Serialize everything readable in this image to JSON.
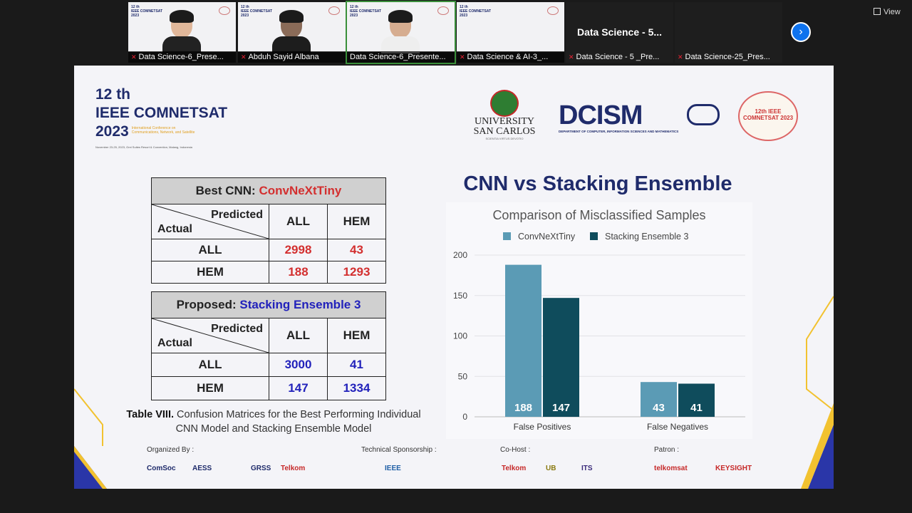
{
  "meeting": {
    "participants": [
      {
        "name": "Data Science-6_Prese...",
        "active": false
      },
      {
        "name": "Abduh Sayid Albana",
        "active": false
      },
      {
        "name": "Data Science-6_Presente...",
        "active": true
      },
      {
        "name": "Data Science & AI-3_...",
        "active": false
      },
      {
        "name": "Data Science - 5 _Pre...",
        "video": false,
        "display": "Data Science - 5..."
      },
      {
        "name": "Data Science-25_Pres...",
        "video": false,
        "display": ""
      }
    ],
    "view_label": "View"
  },
  "slide": {
    "conference": {
      "line1": "12 th",
      "line2": "IEEE COMNETSAT",
      "line3": "2023",
      "sub": "International Conference on Communications, Network, and Satellite",
      "date": "November 23-25, 2023, Grei Suites Resort & Convention, Malang, Indonesia"
    },
    "usc": {
      "line1": "UNIVERSITY",
      "line2": "SAN CARLOS",
      "of": "of",
      "motto": "SCIENTIA VIRTUS DEVOTIO"
    },
    "dcism": {
      "title": "DCISM",
      "subtitle": "DEPARTMENT OF COMPUTER, INFORMATION SCIENCES AND MATHEMATICS"
    },
    "seal": {
      "text": "12th IEEE COMNETSAT 2023"
    },
    "table1": {
      "header_prefix": "Best CNN:",
      "model": "ConvNeXtTiny",
      "predicted": "Predicted",
      "actual": "Actual",
      "cols": [
        "ALL",
        "HEM"
      ],
      "rows": [
        {
          "label": "ALL",
          "values": [
            "2998",
            "43"
          ]
        },
        {
          "label": "HEM",
          "values": [
            "188",
            "1293"
          ]
        }
      ]
    },
    "table2": {
      "header_prefix": "Proposed:",
      "model": "Stacking Ensemble 3",
      "predicted": "Predicted",
      "actual": "Actual",
      "cols": [
        "ALL",
        "HEM"
      ],
      "rows": [
        {
          "label": "ALL",
          "values": [
            "3000",
            "41"
          ]
        },
        {
          "label": "HEM",
          "values": [
            "147",
            "1334"
          ]
        }
      ]
    },
    "caption_bold": "Table VIII.",
    "caption_rest": "Confusion Matrices for the Best Performing Individual CNN Model and Stacking Ensemble Model",
    "chart_title": "CNN vs Stacking Ensemble",
    "sponsors": {
      "organized_by": "Organized By :",
      "technical": "Technical Sponsorship :",
      "cohost": "Co-Host :",
      "patron": "Patron :",
      "logos": [
        "ComSoc",
        "AESS",
        "GRSS",
        "Telkom",
        "IEEE",
        "Telkom",
        "UB",
        "ITS",
        "telkomsat",
        "KEYSIGHT"
      ]
    },
    "colors": {
      "navy": "#1f2b6b",
      "series1": "#5b9bb5",
      "series2": "#0f4c5c",
      "red": "#d32f2f",
      "blue": "#2222bb"
    }
  },
  "chart_data": {
    "type": "bar",
    "title": "Comparison of Misclassified Samples",
    "categories": [
      "False Positives",
      "False Negatives"
    ],
    "series": [
      {
        "name": "ConvNeXtTiny",
        "values": [
          188,
          43
        ],
        "color": "#5b9bb5"
      },
      {
        "name": "Stacking Ensemble 3",
        "values": [
          147,
          41
        ],
        "color": "#0f4c5c"
      }
    ],
    "ylim": [
      0,
      200
    ],
    "yticks": [
      0,
      50,
      100,
      150,
      200
    ],
    "grid": true,
    "legend": "top",
    "xlabel": "",
    "ylabel": ""
  }
}
